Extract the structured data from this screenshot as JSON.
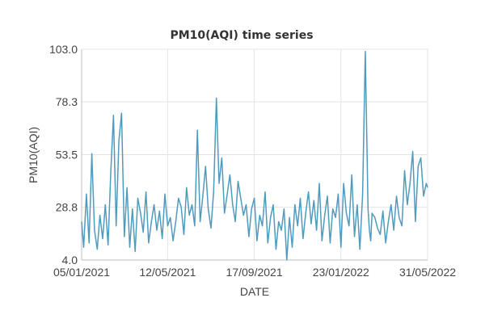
{
  "chart_data": {
    "type": "line",
    "title": "PM10(AQI) time series",
    "xlabel": "DATE",
    "ylabel": "PM10(AQI)",
    "xlim": [
      "2021-01-05",
      "2022-05-31"
    ],
    "ylim": [
      4.0,
      103.0
    ],
    "x_ticks": [
      "05/01/2021",
      "12/05/2021",
      "17/09/2021",
      "23/01/2022",
      "31/05/2022"
    ],
    "y_ticks": [
      "4.0",
      "28.8",
      "53.5",
      "78.3",
      "103.0"
    ],
    "grid": true,
    "legend": "none",
    "series_color": "#4f9bbe",
    "series": [
      {
        "x": [
          "2021-01-05",
          "2021-01-08",
          "2021-01-12",
          "2021-01-16",
          "2021-01-20",
          "2021-01-24",
          "2021-01-28",
          "2021-02-01",
          "2021-02-05",
          "2021-02-09",
          "2021-02-13",
          "2021-02-17",
          "2021-02-21",
          "2021-02-25",
          "2021-03-01",
          "2021-03-05",
          "2021-03-09",
          "2021-03-13",
          "2021-03-17",
          "2021-03-21",
          "2021-03-25",
          "2021-03-29",
          "2021-04-02",
          "2021-04-06",
          "2021-04-10",
          "2021-04-14",
          "2021-04-18",
          "2021-04-22",
          "2021-04-26",
          "2021-04-30",
          "2021-05-04",
          "2021-05-08",
          "2021-05-12",
          "2021-05-16",
          "2021-05-20",
          "2021-05-24",
          "2021-05-28",
          "2021-06-01",
          "2021-06-05",
          "2021-06-09",
          "2021-06-13",
          "2021-06-17",
          "2021-06-21",
          "2021-06-25",
          "2021-06-29",
          "2021-07-03",
          "2021-07-07",
          "2021-07-11",
          "2021-07-15",
          "2021-07-19",
          "2021-07-23",
          "2021-07-27",
          "2021-07-31",
          "2021-08-04",
          "2021-08-08",
          "2021-08-12",
          "2021-08-16",
          "2021-08-20",
          "2021-08-24",
          "2021-08-28",
          "2021-09-01",
          "2021-09-05",
          "2021-09-09",
          "2021-09-13",
          "2021-09-17",
          "2021-09-21",
          "2021-09-25",
          "2021-09-29",
          "2021-10-03",
          "2021-10-07",
          "2021-10-11",
          "2021-10-15",
          "2021-10-19",
          "2021-10-23",
          "2021-10-27",
          "2021-10-31",
          "2021-11-04",
          "2021-11-08",
          "2021-11-12",
          "2021-11-16",
          "2021-11-20",
          "2021-11-24",
          "2021-11-28",
          "2021-12-02",
          "2021-12-06",
          "2021-12-10",
          "2021-12-14",
          "2021-12-18",
          "2021-12-22",
          "2021-12-26",
          "2021-12-30",
          "2022-01-03",
          "2022-01-07",
          "2022-01-11",
          "2022-01-15",
          "2022-01-19",
          "2022-01-23",
          "2022-01-27",
          "2022-01-31",
          "2022-02-04",
          "2022-02-08",
          "2022-02-12",
          "2022-02-16",
          "2022-02-20",
          "2022-02-24",
          "2022-02-28",
          "2022-03-04",
          "2022-03-06",
          "2022-03-08",
          "2022-03-10",
          "2022-03-14",
          "2022-03-18",
          "2022-03-22",
          "2022-03-26",
          "2022-03-30",
          "2022-04-03",
          "2022-04-07",
          "2022-04-11",
          "2022-04-15",
          "2022-04-19",
          "2022-04-23",
          "2022-04-27",
          "2022-05-01",
          "2022-05-05",
          "2022-05-09",
          "2022-05-13",
          "2022-05-17",
          "2022-05-21",
          "2022-05-25",
          "2022-05-29",
          "2022-05-31"
        ],
        "y": [
          22,
          10,
          35,
          12,
          54,
          18,
          9,
          25,
          14,
          30,
          11,
          45,
          72,
          20,
          60,
          73,
          15,
          38,
          10,
          28,
          8,
          33,
          26,
          17,
          36,
          12,
          22,
          30,
          18,
          27,
          14,
          35,
          20,
          24,
          13,
          22,
          33,
          29,
          16,
          38,
          25,
          30,
          20,
          65,
          22,
          34,
          48,
          28,
          19,
          36,
          80,
          40,
          52,
          26,
          35,
          44,
          30,
          22,
          41,
          33,
          25,
          30,
          15,
          28,
          33,
          13,
          25,
          20,
          36,
          12,
          24,
          30,
          9,
          22,
          18,
          28,
          4,
          24,
          10,
          30,
          20,
          33,
          14,
          26,
          36,
          21,
          32,
          18,
          40,
          13,
          25,
          34,
          12,
          28,
          24,
          35,
          10,
          40,
          26,
          20,
          44,
          15,
          30,
          9,
          35,
          102,
          28,
          18,
          13,
          26,
          24,
          19,
          16,
          27,
          12,
          22,
          30,
          18,
          34,
          24,
          20,
          46,
          30,
          40,
          55,
          22,
          48,
          52,
          34,
          40,
          38
        ]
      }
    ]
  }
}
